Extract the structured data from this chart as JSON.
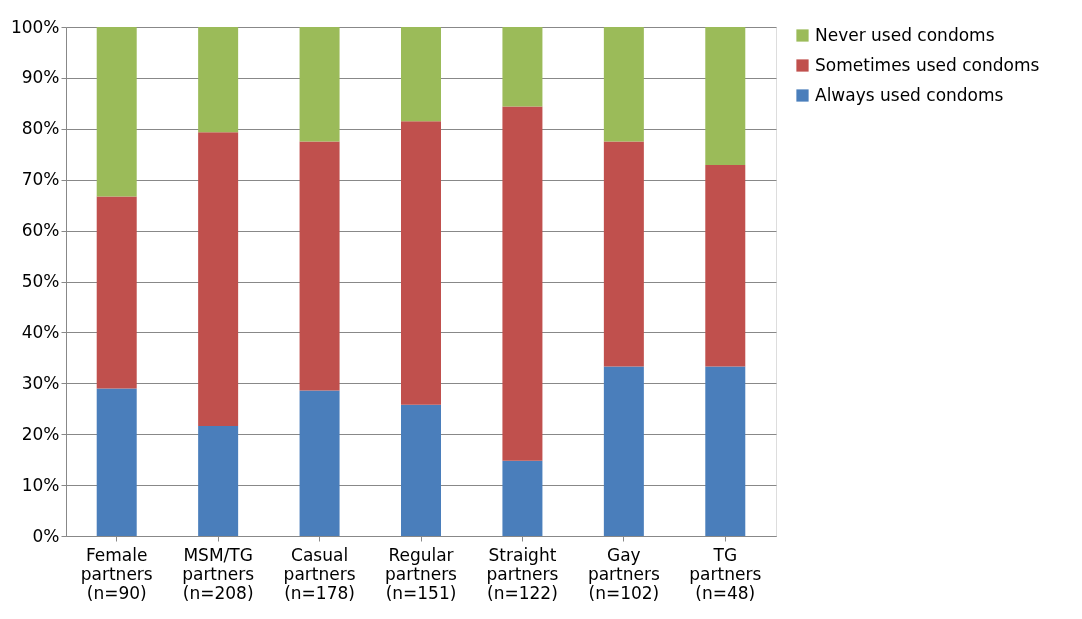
{
  "chart_data": {
    "type": "bar",
    "stacked": true,
    "categories": [
      "Female partners (n=90)",
      "MSM/TG partners (n=208)",
      "Casual partners (n=178)",
      "Regular partners (n=151)",
      "Straight partners (n=122)",
      "Gay partners (n=102)",
      "TG partners (n=48)"
    ],
    "series": [
      {
        "name": "Always used condoms",
        "color": "#4a7ebb",
        "values": [
          29,
          21.6,
          28.6,
          25.8,
          14.8,
          33.3,
          33.3
        ]
      },
      {
        "name": "Sometimes used condoms",
        "color": "#c0504d",
        "values": [
          37.7,
          57.7,
          48.9,
          55.7,
          69.6,
          44.2,
          39.6
        ]
      },
      {
        "name": "Never used condoms",
        "color": "#9bbb59",
        "values": [
          33.3,
          20.7,
          22.5,
          18.5,
          15.6,
          22.5,
          27.1
        ]
      }
    ],
    "ylim": [
      0,
      100
    ],
    "yticks": [
      {
        "value": 0,
        "label": "0%"
      },
      {
        "value": 10,
        "label": "10%"
      },
      {
        "value": 20,
        "label": "20%"
      },
      {
        "value": 30,
        "label": "30%"
      },
      {
        "value": 40,
        "label": "40%"
      },
      {
        "value": 50,
        "label": "50%"
      },
      {
        "value": 60,
        "label": "60%"
      },
      {
        "value": 70,
        "label": "70%"
      },
      {
        "value": 80,
        "label": "80%"
      },
      {
        "value": 90,
        "label": "90%"
      },
      {
        "value": 100,
        "label": "100%"
      }
    ],
    "grid": "y",
    "legend": "right"
  }
}
